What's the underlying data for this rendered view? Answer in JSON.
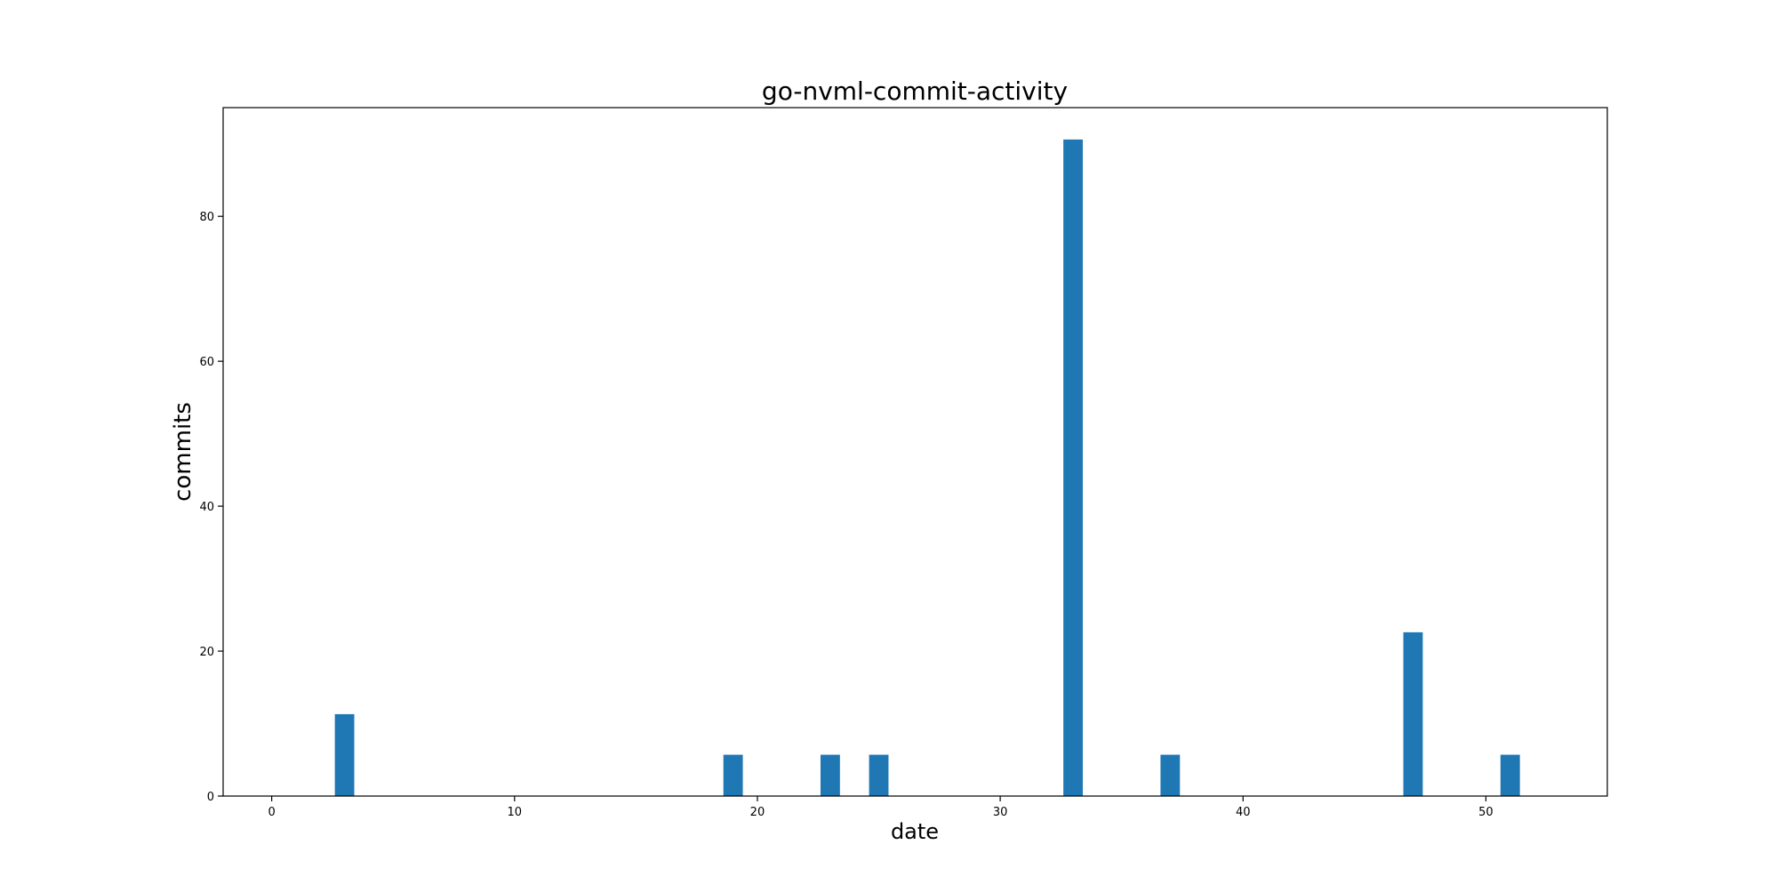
{
  "chart_data": {
    "type": "bar",
    "title": "go-nvml-commit-activity",
    "xlabel": "date",
    "ylabel": "commits",
    "x": [
      0,
      1,
      2,
      3,
      4,
      5,
      6,
      7,
      8,
      9,
      10,
      11,
      12,
      13,
      14,
      15,
      16,
      17,
      18,
      19,
      20,
      21,
      22,
      23,
      24,
      25,
      26,
      27,
      28,
      29,
      30,
      31,
      32,
      33,
      34,
      35,
      36,
      37,
      38,
      39,
      40,
      41,
      42,
      43,
      44,
      45,
      46,
      47,
      48,
      49,
      50,
      51
    ],
    "values": [
      0,
      0,
      0,
      11.3,
      0,
      0,
      0,
      0,
      0,
      0,
      0,
      0,
      0,
      0,
      0,
      0,
      0,
      0,
      0,
      5.7,
      0,
      0,
      0,
      5.7,
      0,
      5.7,
      0,
      0,
      0,
      0,
      0,
      0,
      0,
      90.6,
      0,
      0,
      0,
      5.7,
      0,
      0,
      0,
      0,
      0,
      0,
      0,
      0,
      0,
      22.6,
      0,
      0,
      0,
      5.7
    ],
    "bar_width": 0.8,
    "xlim": [
      -2,
      55
    ],
    "ylim": [
      0,
      95
    ],
    "xticks": [
      0,
      10,
      20,
      30,
      40,
      50
    ],
    "yticks": [
      0,
      20,
      40,
      60,
      80
    ],
    "grid": false,
    "colors": {
      "bar": "#1f77b4",
      "axis": "#000000"
    }
  }
}
